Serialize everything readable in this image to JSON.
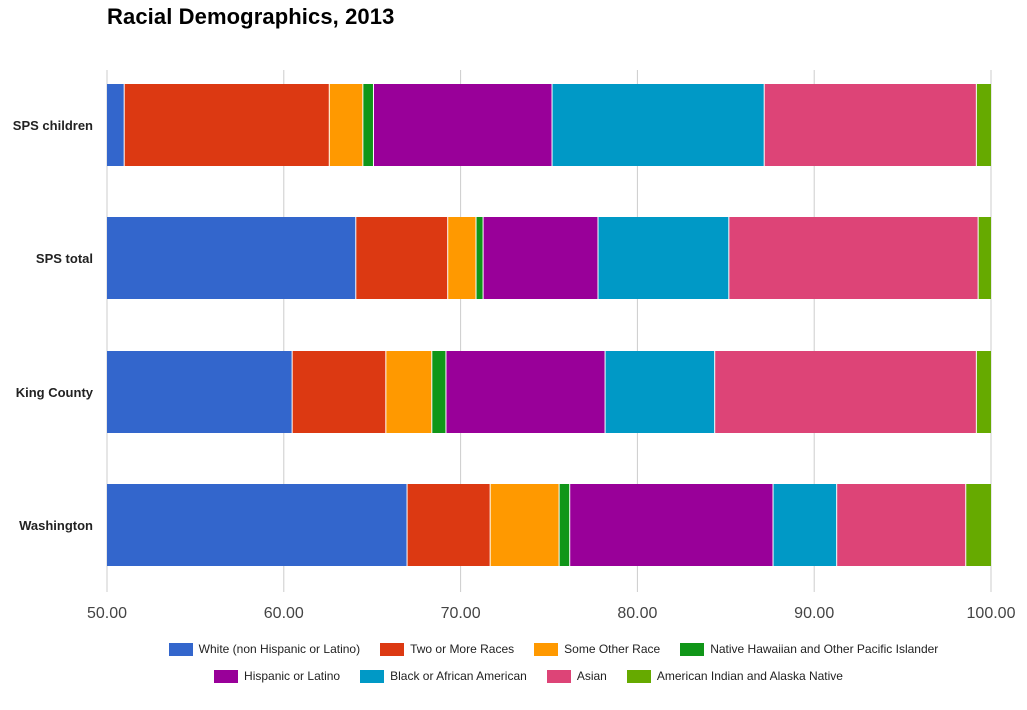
{
  "chart_data": {
    "type": "bar",
    "orientation": "horizontal",
    "stacked": true,
    "title": "Racial Demographics, 2013",
    "xlabel": "",
    "ylabel": "",
    "xlim": [
      50,
      100
    ],
    "x_ticks": [
      "50.00",
      "60.00",
      "70.00",
      "80.00",
      "90.00",
      "100.00"
    ],
    "x_tick_values": [
      50,
      60,
      70,
      80,
      90,
      100
    ],
    "grid": true,
    "legend_position": "bottom",
    "categories": [
      "SPS children",
      "SPS total",
      "King County",
      "Washington"
    ],
    "series": [
      {
        "name": "White (non Hispanic or Latino)",
        "color": "#3366cc",
        "cumulative_end": [
          51.0,
          64.1,
          60.5,
          67.0
        ]
      },
      {
        "name": "Two or More Races",
        "color": "#dc3912",
        "cumulative_end": [
          62.6,
          69.3,
          65.8,
          71.7
        ]
      },
      {
        "name": "Some Other Race",
        "color": "#ff9900",
        "cumulative_end": [
          64.5,
          70.9,
          68.4,
          75.6
        ]
      },
      {
        "name": "Native Hawaiian and Other Pacific Islander",
        "color": "#109618",
        "cumulative_end": [
          65.1,
          71.3,
          69.2,
          76.2
        ]
      },
      {
        "name": "Hispanic or Latino",
        "color": "#990099",
        "cumulative_end": [
          75.2,
          77.8,
          78.2,
          87.7
        ]
      },
      {
        "name": "Black or African American",
        "color": "#0099c6",
        "cumulative_end": [
          87.2,
          85.2,
          84.4,
          91.3
        ]
      },
      {
        "name": "Asian",
        "color": "#dd4477",
        "cumulative_end": [
          99.2,
          99.3,
          99.2,
          98.6
        ]
      },
      {
        "name": "American Indian and Alaska Native",
        "color": "#66aa00",
        "cumulative_end": [
          100,
          100,
          100,
          100
        ]
      }
    ],
    "legend_rows": [
      [
        0,
        1,
        2,
        3
      ],
      [
        4,
        5,
        6,
        7
      ]
    ]
  }
}
